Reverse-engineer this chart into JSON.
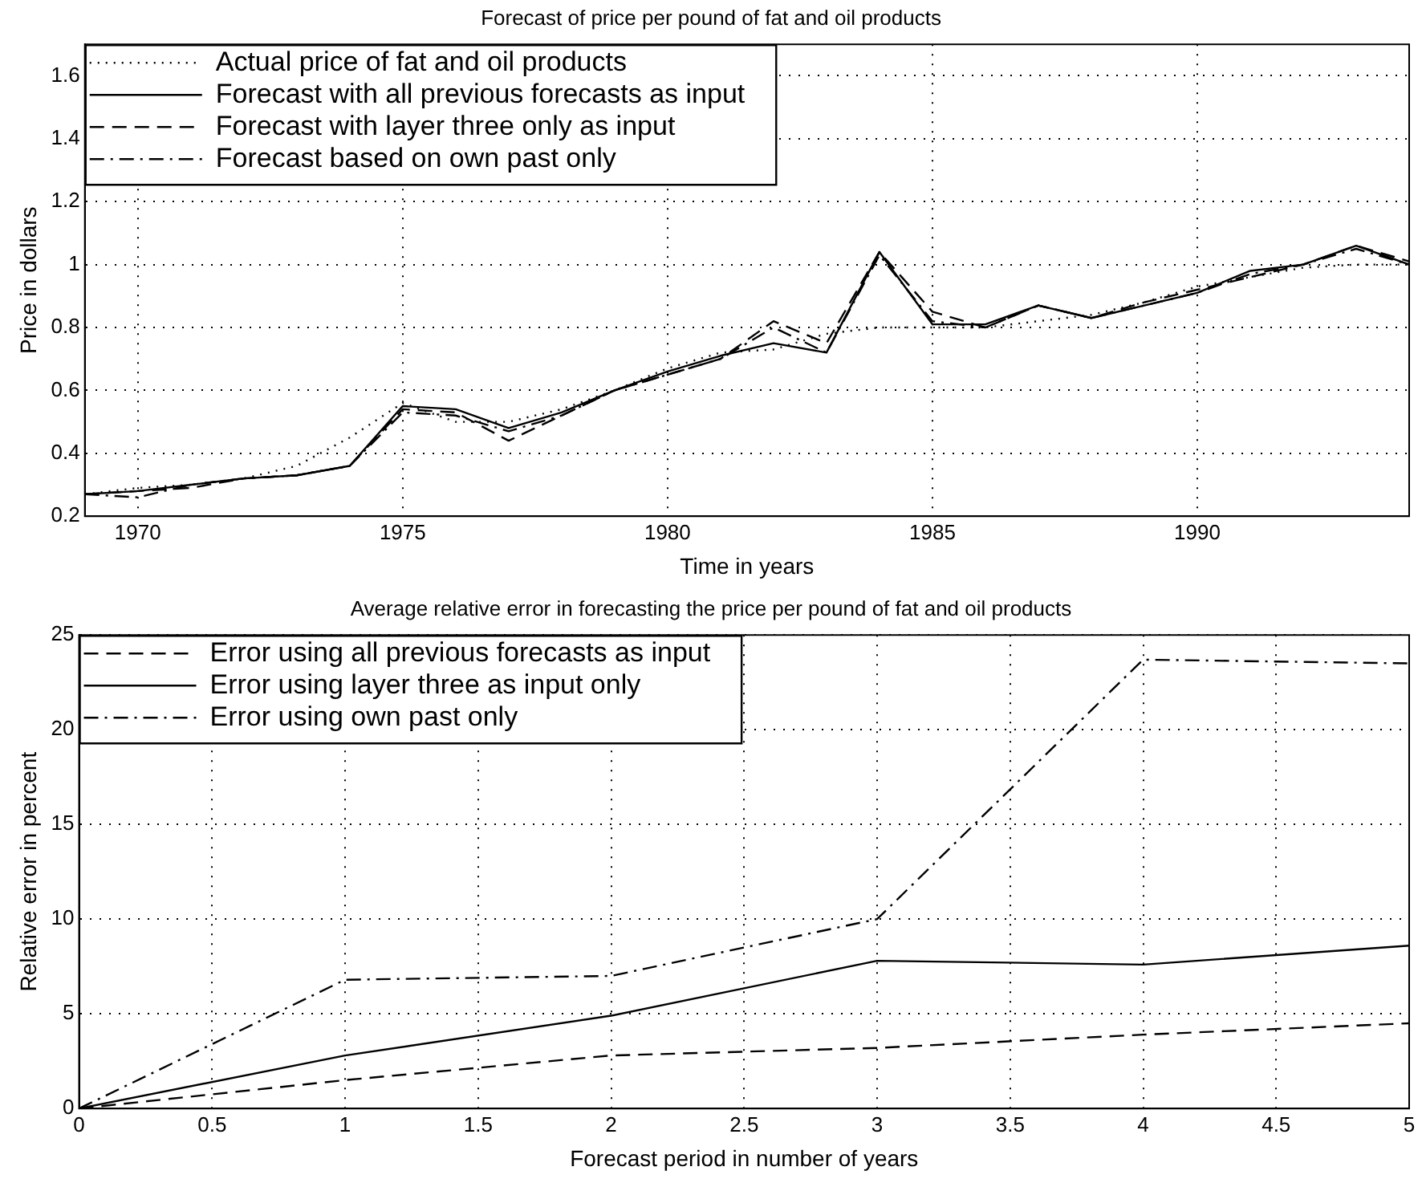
{
  "chart_data": [
    {
      "type": "line",
      "title": "Forecast of price per pound of fat and oil products",
      "xlabel": "Time in years",
      "ylabel": "Price in dollars",
      "x": [
        1969,
        1970,
        1971,
        1972,
        1973,
        1974,
        1975,
        1976,
        1977,
        1978,
        1979,
        1980,
        1981,
        1982,
        1983,
        1984,
        1985,
        1986,
        1987,
        1988,
        1989,
        1990,
        1991,
        1992,
        1993,
        1994
      ],
      "series": [
        {
          "name": "Actual price of fat and oil products",
          "color": "#000000",
          "line_style": "dotted",
          "values": [
            0.27,
            0.29,
            0.3,
            0.32,
            0.36,
            0.45,
            0.56,
            0.5,
            0.5,
            0.54,
            0.6,
            0.67,
            0.72,
            0.73,
            0.78,
            0.8,
            0.8,
            0.8,
            0.82,
            0.84,
            0.88,
            0.93,
            0.96,
            0.99,
            1.0,
            1.0
          ]
        },
        {
          "name": "Forecast with all previous forecasts as input",
          "color": "#000000",
          "line_style": "solid",
          "values": [
            0.27,
            0.28,
            0.3,
            0.32,
            0.33,
            0.36,
            0.55,
            0.54,
            0.48,
            0.53,
            0.6,
            0.66,
            0.71,
            0.75,
            0.72,
            1.04,
            0.81,
            0.81,
            0.87,
            0.83,
            0.87,
            0.91,
            0.98,
            1.0,
            1.06,
            1.0
          ]
        },
        {
          "name": "Forecast with layer three only as input",
          "color": "#000000",
          "line_style": "dashed",
          "values": [
            0.27,
            0.28,
            0.29,
            0.32,
            0.33,
            0.36,
            0.54,
            0.53,
            0.44,
            0.52,
            0.6,
            0.65,
            0.7,
            0.82,
            0.75,
            1.04,
            0.85,
            0.8,
            0.87,
            0.83,
            0.88,
            0.92,
            0.96,
            1.0,
            1.06,
            1.01
          ]
        },
        {
          "name": "Forecast based on own past only",
          "color": "#000000",
          "line_style": "dashdot",
          "values": [
            0.27,
            0.26,
            0.3,
            0.32,
            0.33,
            0.36,
            0.53,
            0.52,
            0.47,
            0.52,
            0.6,
            0.65,
            0.7,
            0.8,
            0.72,
            1.03,
            0.82,
            0.8,
            0.87,
            0.83,
            0.87,
            0.91,
            0.97,
            1.0,
            1.05,
            1.0
          ]
        }
      ],
      "xlim": [
        1969,
        1994
      ],
      "xticks": [
        1970,
        1975,
        1980,
        1985,
        1990
      ],
      "ylim": [
        0.2,
        1.7
      ],
      "yticks": [
        0.2,
        0.4,
        0.6,
        0.8,
        1,
        1.2,
        1.4,
        1.6
      ],
      "grid": true,
      "legend": "top left"
    },
    {
      "type": "line",
      "title": "Average relative error in forecasting the price per pound of fat and oil products",
      "xlabel": "Forecast period in number of years",
      "ylabel": "Relative error in percent",
      "x": [
        0,
        1,
        2,
        3,
        4,
        5
      ],
      "series": [
        {
          "name": "Error using all previous forecasts as input",
          "color": "#000000",
          "line_style": "dashed",
          "values": [
            0,
            1.5,
            2.8,
            3.2,
            3.9,
            4.5
          ]
        },
        {
          "name": "Error using layer three as input only",
          "color": "#000000",
          "line_style": "solid",
          "values": [
            0,
            2.8,
            4.9,
            7.8,
            7.6,
            8.6
          ]
        },
        {
          "name": "Error using own past only",
          "color": "#000000",
          "line_style": "dashdot",
          "values": [
            0,
            6.8,
            7.0,
            10.0,
            23.7,
            23.5
          ]
        }
      ],
      "xlim": [
        0,
        5
      ],
      "xticks": [
        0,
        0.5,
        1,
        1.5,
        2,
        2.5,
        3,
        3.5,
        4,
        4.5,
        5
      ],
      "ylim": [
        0,
        25
      ],
      "yticks": [
        0,
        5,
        10,
        15,
        20,
        25
      ],
      "grid": true,
      "legend": "top left"
    }
  ]
}
